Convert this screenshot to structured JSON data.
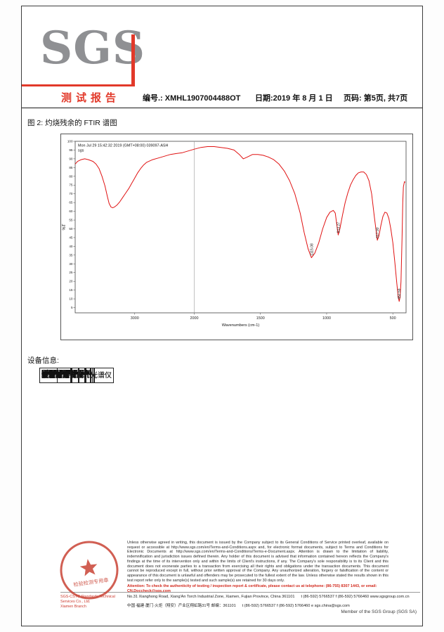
{
  "page": {
    "logo_text": "SGS",
    "report_title": "测试报告",
    "report_no_label": "编号.: XMHL1907004488OT",
    "date_label": "日期:2019 年 8 月 1 日",
    "page_label": "页码: 第5页, 共7页",
    "figure_caption": "图 2: 灼烧残余的 FTIR 谱图",
    "equipment_section_title": "设备信息:"
  },
  "chart_data": {
    "type": "line",
    "title": "",
    "annotation": "Mon Jul 29 15:42:32 2019 (GMT+08:00)  039097-ASH",
    "annotation2": "sgs",
    "xlabel": "Wavenumbers (cm-1)",
    "ylabel": "%T",
    "line_color": "#e01212",
    "x_axis": {
      "min": 4000,
      "max": 400,
      "break_at": 2000,
      "break_fraction": 0.36,
      "ticks": [
        3000,
        2000,
        1500,
        1000,
        500
      ]
    },
    "y_axis": {
      "min": 2,
      "max": 100,
      "tick_step": 5,
      "ticks": [
        100,
        95,
        90,
        85,
        80,
        75,
        70,
        65,
        60,
        55,
        50,
        45,
        40,
        35,
        30,
        25,
        20,
        15,
        10,
        5
      ]
    },
    "peak_labels": [
      {
        "text": "1115.08",
        "wavenumber": 1115,
        "value": 33.5
      },
      {
        "text": "913.27",
        "wavenumber": 913,
        "value": 46.5
      },
      {
        "text": "617.90",
        "wavenumber": 618,
        "value": 43.5
      },
      {
        "text": "452.59",
        "wavenumber": 453,
        "value": 8.5
      }
    ],
    "points": [
      [
        4000,
        87
      ],
      [
        3960,
        88.5
      ],
      [
        3900,
        89.5
      ],
      [
        3840,
        90
      ],
      [
        3780,
        89.5
      ],
      [
        3700,
        88.5
      ],
      [
        3650,
        87
      ],
      [
        3600,
        84.5
      ],
      [
        3550,
        80
      ],
      [
        3500,
        74.5
      ],
      [
        3460,
        68.5
      ],
      [
        3430,
        64.5
      ],
      [
        3400,
        62.5
      ],
      [
        3370,
        62
      ],
      [
        3340,
        62.5
      ],
      [
        3300,
        63.5
      ],
      [
        3250,
        65.5
      ],
      [
        3200,
        68
      ],
      [
        3150,
        70.5
      ],
      [
        3100,
        73
      ],
      [
        3050,
        76
      ],
      [
        3000,
        79
      ],
      [
        2950,
        82
      ],
      [
        2900,
        84.5
      ],
      [
        2850,
        86.5
      ],
      [
        2800,
        88
      ],
      [
        2700,
        89.5
      ],
      [
        2600,
        90.5
      ],
      [
        2500,
        91.5
      ],
      [
        2400,
        92.5
      ],
      [
        2300,
        93
      ],
      [
        2200,
        93.5
      ],
      [
        2100,
        94.5
      ],
      [
        2000,
        95.5
      ],
      [
        1950,
        96.5
      ],
      [
        1900,
        97
      ],
      [
        1850,
        97
      ],
      [
        1800,
        96.5
      ],
      [
        1750,
        96
      ],
      [
        1700,
        95
      ],
      [
        1660,
        92.5
      ],
      [
        1630,
        90
      ],
      [
        1600,
        91
      ],
      [
        1560,
        92.5
      ],
      [
        1520,
        92.5
      ],
      [
        1480,
        92
      ],
      [
        1440,
        91
      ],
      [
        1400,
        89.5
      ],
      [
        1360,
        87
      ],
      [
        1320,
        83
      ],
      [
        1280,
        77.5
      ],
      [
        1240,
        70
      ],
      [
        1200,
        59
      ],
      [
        1170,
        48
      ],
      [
        1140,
        38.5
      ],
      [
        1115,
        33.5
      ],
      [
        1090,
        36
      ],
      [
        1060,
        42
      ],
      [
        1030,
        50
      ],
      [
        1000,
        56.5
      ],
      [
        975,
        59.5
      ],
      [
        950,
        60.5
      ],
      [
        935,
        59
      ],
      [
        913,
        46.5
      ],
      [
        900,
        50
      ],
      [
        880,
        58
      ],
      [
        860,
        65
      ],
      [
        840,
        70.5
      ],
      [
        820,
        75
      ],
      [
        800,
        78
      ],
      [
        780,
        80.5
      ],
      [
        760,
        82
      ],
      [
        740,
        82.5
      ],
      [
        720,
        82.5
      ],
      [
        700,
        81
      ],
      [
        680,
        77.5
      ],
      [
        660,
        70
      ],
      [
        640,
        57
      ],
      [
        617,
        43.5
      ],
      [
        605,
        46
      ],
      [
        590,
        52
      ],
      [
        575,
        57
      ],
      [
        560,
        59.5
      ],
      [
        545,
        59
      ],
      [
        530,
        56
      ],
      [
        515,
        50
      ],
      [
        500,
        42
      ],
      [
        485,
        31
      ],
      [
        470,
        19
      ],
      [
        460,
        11.5
      ],
      [
        452,
        8.5
      ],
      [
        445,
        11
      ],
      [
        438,
        20
      ],
      [
        430,
        45
      ],
      [
        425,
        65
      ],
      [
        420,
        74
      ],
      [
        412,
        77
      ],
      [
        407,
        76.5
      ]
    ]
  },
  "equipment_table": {
    "columns": [
      "设备",
      "型号",
      "设备编号",
      "校准日期",
      "下次校准日期"
    ],
    "rows": [
      [
        "傅立叶变换红外光谱仪",
        "NICOLET 5700",
        "GZMR-PL-E028",
        "2018-09-07",
        "2019-09-06"
      ],
      [
        "傅立叶变换红外光谱仪",
        "NICOLET IS50",
        "GZMR-PL-E216",
        "2019-04-09",
        "2020-04-08"
      ],
      [
        "气相色谱-质谱仪",
        "5977B-7890B",
        "CHEM-019-CA",
        "2017-10-24",
        "2019-10-23"
      ],
      [
        "X 荧光光谱仪",
        "EDX-720",
        "CHEM-036-E",
        "2019-04-03",
        "2021-04-02"
      ],
      [
        "热重分析仪",
        "Discovery TGA",
        "GZMR-PL-E194",
        "2017-12-08",
        "2019-12-07"
      ],
      [
        "紫外分光光度计",
        "UV-1700",
        "GZMR-PL-E159",
        "2019-05-13",
        "2020-05-12"
      ]
    ]
  },
  "footer": {
    "legal_text": "Unless otherwise agreed in writing, this document is issued by the Company subject to its General Conditions of Service printed overleaf, available on request or accessible at http://www.sgs.com/en/Terms-and-Conditions.aspx and, for electronic format documents, subject to Terms and Conditions for Electronic Documents at http://www.sgs.com/en/Terms-and-Conditions/Terms-e-Document.aspx. Attention is drawn to the limitation of liability, indemnification and jurisdiction issues defined therein. Any holder of this document is advised that information contained hereon reflects the Company's findings at the time of its intervention only and within the limits of Client's instructions, if any. The Company's sole responsibility is to its Client and this document does not exonerate parties to a transaction from exercising all their rights and obligations under the transaction documents. This document cannot be reproduced except in full, without prior written approval of the Company. Any unauthorized alteration, forgery or falsification of the content or appearance of this document is unlawful and offenders may be prosecuted to the fullest extent of the law. Unless otherwise stated the results shown in this test report refer only to the sample(s) tested and such sample(s) are retained for 30 days only.",
    "attention_text": "Attention: To check the authenticity of testing / inspection report & certificate, please contact us at telephone: (86-755) 8307 1443, or email: CN.Doccheck@sgs.com",
    "company_line": "SGS-CSTC Standards Technical Services Co., Ltd.",
    "branch_line": "Xiamen Branch",
    "address_en": "No.31 Xianghong Road, Xiang'An Torch Industrial Zone, Xiamen, Fujian Province, China 361101",
    "contact_en": "t (86-592) 5766537   f (86-592) 5766460   www.sgsgroup.com.cn",
    "address_cn": "中国·福建·厦门·火炬（翔安）产业区翔虹路31号  邮编：361101",
    "contact_cn": "t (86-592) 5766537   f (86-592) 5766460   e sgs.china@sgs.com",
    "member_line": "Member of the SGS Group (SGS SA)",
    "seal_text": "检验检测专用章"
  },
  "colors": {
    "brand_red": "#e2392a",
    "curve_red": "#e01212",
    "stamp_red": "#c94436"
  }
}
